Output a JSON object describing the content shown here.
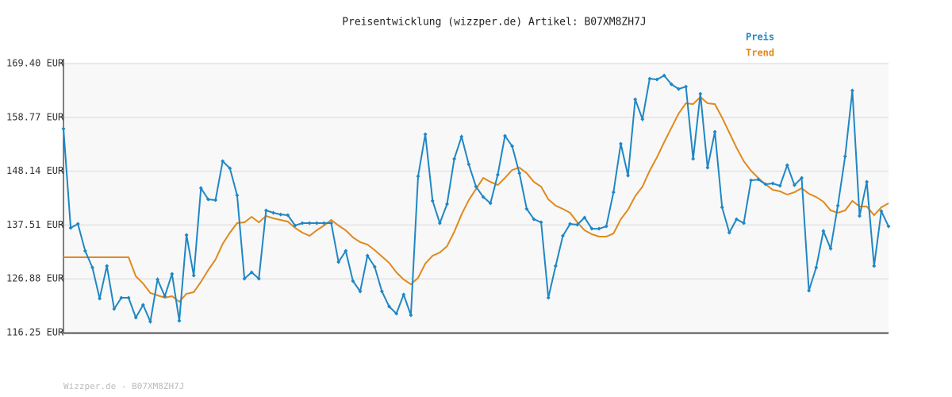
{
  "chart_data": {
    "type": "line",
    "title": "Preisentwicklung (wizzper.de) Artikel: B07XM8ZH7J",
    "footer": "Wizzper.de - B07XM8ZH7J",
    "categories": [
      null,
      null,
      null,
      null,
      null,
      null,
      null,
      null,
      null,
      null,
      null,
      null,
      null,
      null,
      null,
      null,
      null,
      null,
      null,
      null,
      null,
      null,
      null,
      null,
      null,
      null,
      null,
      null,
      null,
      null,
      null,
      null,
      null,
      null,
      null,
      null,
      null,
      null,
      null,
      null,
      null,
      null,
      null,
      null,
      null,
      null,
      null,
      null,
      null,
      null,
      null,
      null,
      null,
      null,
      null,
      null,
      null,
      null,
      null,
      null,
      null,
      null,
      null,
      null,
      null,
      null,
      null,
      null,
      null,
      null,
      null,
      null,
      null,
      null,
      null,
      null,
      null,
      null,
      null,
      null,
      null,
      null,
      null,
      null,
      null,
      null,
      null,
      null,
      null,
      null,
      null,
      null,
      null,
      null,
      null,
      null,
      null,
      null,
      null,
      null,
      null,
      null,
      null,
      null,
      null,
      null,
      null,
      null,
      null,
      null,
      null,
      null,
      null,
      null,
      null
    ],
    "series": [
      {
        "name": "Preis",
        "color": "#1f87c4",
        "markers": true,
        "values": [
          156.53,
          136.94,
          137.72,
          132.39,
          129.1,
          122.99,
          129.42,
          120.95,
          123.15,
          123.15,
          119.23,
          121.74,
          118.44,
          126.75,
          123.46,
          127.85,
          118.6,
          135.53,
          127.54,
          144.78,
          142.58,
          142.43,
          150.11,
          148.7,
          143.37,
          126.91,
          128.16,
          126.91,
          140.39,
          139.92,
          139.6,
          139.45,
          137.41,
          137.88,
          137.88,
          137.88,
          137.88,
          137.88,
          130.2,
          132.39,
          126.44,
          124.4,
          131.45,
          129.26,
          124.4,
          121.42,
          120.01,
          123.77,
          119.7,
          147.13,
          155.43,
          142.27,
          137.88,
          141.64,
          150.58,
          154.96,
          149.48,
          145.09,
          143.05,
          141.8,
          147.44,
          155.12,
          153.08,
          147.75,
          140.7,
          138.66,
          138.04,
          123.15,
          129.42,
          135.37,
          137.72,
          137.57,
          138.98,
          136.78,
          136.78,
          137.25,
          143.99,
          153.55,
          147.28,
          162.33,
          158.41,
          166.41,
          166.25,
          167.03,
          165.31,
          164.37,
          164.84,
          150.58,
          163.43,
          148.85,
          155.91,
          141.01,
          136.0,
          138.66,
          137.88,
          146.34,
          146.5,
          145.56,
          145.72,
          145.25,
          149.32,
          145.4,
          146.81,
          124.56,
          129.1,
          136.31,
          132.86,
          141.33,
          151.05,
          164.06,
          139.29,
          146.03,
          129.42,
          140.23,
          137.25
        ]
      },
      {
        "name": "Trend",
        "color": "#e0891d",
        "markers": false,
        "values": [
          131.14,
          131.14,
          131.14,
          131.14,
          131.14,
          131.14,
          131.14,
          131.14,
          131.14,
          131.14,
          127.38,
          125.97,
          124.09,
          123.62,
          123.15,
          123.46,
          122.36,
          123.93,
          124.24,
          126.28,
          128.63,
          130.67,
          133.8,
          136.0,
          137.88,
          138.04,
          139.13,
          138.04,
          139.29,
          138.82,
          138.51,
          138.19,
          136.94,
          136.0,
          135.37,
          136.47,
          137.41,
          138.51,
          137.41,
          136.47,
          135.06,
          134.12,
          133.65,
          132.55,
          131.3,
          130.04,
          128.16,
          126.75,
          125.81,
          127.07,
          129.89,
          131.45,
          132.08,
          133.33,
          136.16,
          139.6,
          142.43,
          144.62,
          146.81,
          146.03,
          145.4,
          146.81,
          148.38,
          148.85,
          147.75,
          146.03,
          145.09,
          142.58,
          141.33,
          140.7,
          139.92,
          138.04,
          136.47,
          135.69,
          135.22,
          135.22,
          135.84,
          138.66,
          140.54,
          143.21,
          145.09,
          148.22,
          150.89,
          153.87,
          156.69,
          159.51,
          161.55,
          161.39,
          162.8,
          161.55,
          161.39,
          158.73,
          155.75,
          152.77,
          150.11,
          148.22,
          146.81,
          145.56,
          144.46,
          144.15,
          143.52,
          143.99,
          144.78,
          143.68,
          143.05,
          142.11,
          140.39,
          139.92,
          140.39,
          142.27,
          141.17,
          141.17,
          139.45,
          141.01,
          141.8
        ]
      }
    ],
    "ylim": [
      116.25,
      169.4
    ],
    "yticks": [
      {
        "value": 116.25,
        "label": "116.25 EUR"
      },
      {
        "value": 126.88,
        "label": "126.88 EUR"
      },
      {
        "value": 137.51,
        "label": "137.51 EUR"
      },
      {
        "value": 148.14,
        "label": "148.14 EUR"
      },
      {
        "value": 158.77,
        "label": "158.77 EUR"
      },
      {
        "value": 169.4,
        "label": "169.40 EUR"
      }
    ],
    "grid": true,
    "legend": "top-right"
  }
}
